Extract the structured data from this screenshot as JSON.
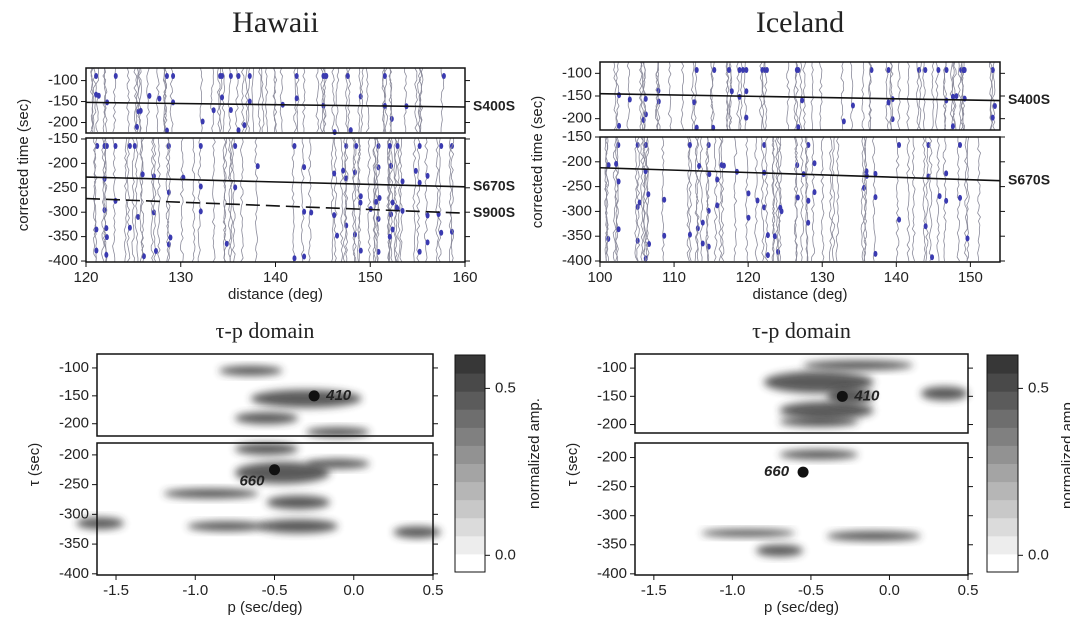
{
  "chart_data": [
    {
      "type": "seismic-section",
      "title": "Hawaii",
      "xlabel": "distance (deg)",
      "ylabel": "corrected time (sec)",
      "xlim": [
        120,
        160
      ],
      "xticks": [
        120,
        130,
        140,
        150,
        160
      ],
      "panels": [
        {
          "ylim": [
            -70,
            -225
          ],
          "yticks": [
            -100,
            -150,
            -200
          ]
        },
        {
          "ylim": [
            -148,
            -402
          ],
          "yticks": [
            -150,
            -200,
            -250,
            -300,
            -350,
            -400
          ]
        }
      ],
      "series": [
        {
          "name": "S400S",
          "panel": 0,
          "style": "solid",
          "x": [
            120,
            160
          ],
          "y": [
            -152,
            -163
          ]
        },
        {
          "name": "S670S",
          "panel": 1,
          "style": "solid",
          "x": [
            120,
            160
          ],
          "y": [
            -228,
            -248
          ]
        },
        {
          "name": "S900S",
          "panel": 1,
          "style": "dashed",
          "x": [
            120,
            160
          ],
          "y": [
            -272,
            -302
          ]
        }
      ]
    },
    {
      "type": "seismic-section",
      "title": "Iceland",
      "xlabel": "distance (deg)",
      "ylabel": "corrected time (sec)",
      "xlim": [
        100,
        154
      ],
      "xticks": [
        100,
        110,
        120,
        130,
        140,
        150
      ],
      "panels": [
        {
          "ylim": [
            -75,
            -225
          ],
          "yticks": [
            -100,
            -150,
            -200
          ]
        },
        {
          "ylim": [
            -150,
            -402
          ],
          "yticks": [
            -150,
            -200,
            -250,
            -300,
            -350,
            -400
          ]
        }
      ],
      "series": [
        {
          "name": "S400S",
          "panel": 0,
          "style": "solid",
          "x": [
            100,
            154
          ],
          "y": [
            -145,
            -160
          ]
        },
        {
          "name": "S670S",
          "panel": 1,
          "style": "solid",
          "x": [
            100,
            154
          ],
          "y": [
            -212,
            -238
          ]
        }
      ]
    },
    {
      "type": "tau-p",
      "title": "τ-p domain",
      "xlabel": "p (sec/deg)",
      "ylabel": "τ (sec)",
      "xlim": [
        -1.62,
        0.5
      ],
      "xticks": [
        {
          "value": -1.5,
          "label": "-1.5"
        },
        {
          "value": -1,
          "label": "-1.0"
        },
        {
          "value": -0.5,
          "label": "-0.5"
        },
        {
          "value": 0,
          "label": "0.0"
        },
        {
          "value": 0.5,
          "label": "0.5"
        }
      ],
      "panels": [
        {
          "ylim": [
            -75,
            -222
          ],
          "yticks": [
            -100,
            -150,
            -200
          ]
        },
        {
          "ylim": [
            -180,
            -402
          ],
          "yticks": [
            -200,
            -250,
            -300,
            -350,
            -400
          ]
        }
      ],
      "points": [
        {
          "label": "410",
          "panel": 0,
          "x": -0.25,
          "y": -150
        },
        {
          "label": "660",
          "panel": 1,
          "x": -0.5,
          "y": -225
        }
      ],
      "colorbar": {
        "label": "normalized amp.",
        "lim": [
          -0.05,
          0.6
        ],
        "ticks": [
          {
            "value": 0,
            "label": "0.0"
          },
          0.5
        ]
      }
    },
    {
      "type": "tau-p",
      "title": "τ-p domain",
      "xlabel": "p (sec/deg)",
      "ylabel": "τ (sec)",
      "xlim": [
        -1.62,
        0.5
      ],
      "xticks": [
        {
          "value": -1.5,
          "label": "-1.5"
        },
        {
          "value": -1,
          "label": "-1.0"
        },
        {
          "value": -0.5,
          "label": "-0.5"
        },
        {
          "value": 0,
          "label": "0.0"
        },
        {
          "value": 0.5,
          "label": "0.5"
        }
      ],
      "panels": [
        {
          "ylim": [
            -75,
            -215
          ],
          "yticks": [
            -100,
            -150,
            -200
          ]
        },
        {
          "ylim": [
            -175,
            -402
          ],
          "yticks": [
            -200,
            -250,
            -300,
            -350,
            -400
          ]
        }
      ],
      "points": [
        {
          "label": "410",
          "panel": 0,
          "x": -0.3,
          "y": -150
        },
        {
          "label": "660",
          "panel": 1,
          "x": -0.55,
          "y": -225
        }
      ],
      "colorbar": {
        "label": "normalized amp.",
        "lim": [
          -0.05,
          0.6
        ],
        "ticks": [
          {
            "value": 0,
            "label": "0.0"
          },
          0.5
        ]
      }
    }
  ]
}
